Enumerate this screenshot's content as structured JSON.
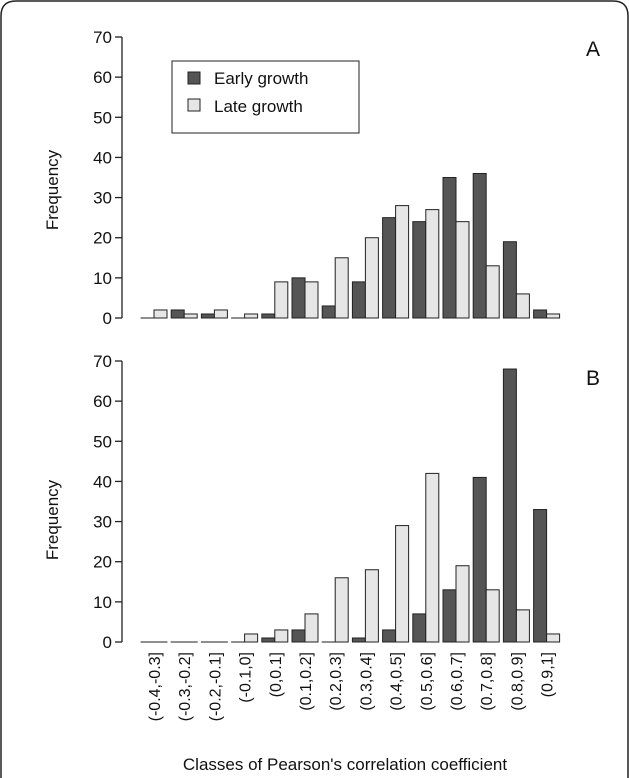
{
  "chart_data": [
    {
      "type": "bar",
      "panel_label": "A",
      "ylabel": "Frequency",
      "ylim": [
        0,
        70
      ],
      "yticks": [
        0,
        10,
        20,
        30,
        40,
        50,
        60,
        70
      ],
      "legend": {
        "placement": "top-left"
      },
      "categories": [
        "(-0.4,-0.3]",
        "(-0.3,-0.2]",
        "(-0.2,-0.1]",
        "(-0.1,0]",
        "(0,0.1]",
        "(0.1,0.2]",
        "(0.2,0.3]",
        "(0.3,0.4]",
        "(0.4,0.5]",
        "(0.5,0.6]",
        "(0.6,0.7]",
        "(0.7,0.8]",
        "(0.8,0.9]",
        "(0.9,1]"
      ],
      "series": [
        {
          "name": "Early growth",
          "color": "#555555",
          "values": [
            0,
            2,
            1,
            0,
            1,
            10,
            3,
            9,
            25,
            24,
            35,
            36,
            19,
            2
          ]
        },
        {
          "name": "Late growth",
          "color": "#e6e6e6",
          "values": [
            2,
            1,
            2,
            1,
            9,
            9,
            15,
            20,
            28,
            27,
            24,
            13,
            6,
            1
          ]
        }
      ]
    },
    {
      "type": "bar",
      "panel_label": "B",
      "ylabel": "Frequency",
      "ylim": [
        0,
        70
      ],
      "yticks": [
        0,
        10,
        20,
        30,
        40,
        50,
        60,
        70
      ],
      "categories": [
        "(-0.4,-0.3]",
        "(-0.3,-0.2]",
        "(-0.2,-0.1]",
        "(-0.1,0]",
        "(0,0.1]",
        "(0.1,0.2]",
        "(0.2,0.3]",
        "(0.3,0.4]",
        "(0.4,0.5]",
        "(0.5,0.6]",
        "(0.6,0.7]",
        "(0.7,0.8]",
        "(0.8,0.9]",
        "(0.9,1]"
      ],
      "xlabel": "Classes of Pearson's correlation coefficient",
      "series": [
        {
          "name": "Early growth",
          "color": "#555555",
          "values": [
            0,
            0,
            0,
            0,
            1,
            3,
            0,
            1,
            3,
            7,
            13,
            41,
            68,
            33
          ]
        },
        {
          "name": "Late growth",
          "color": "#e6e6e6",
          "values": [
            0,
            0,
            0,
            2,
            3,
            7,
            16,
            18,
            29,
            42,
            19,
            13,
            8,
            2
          ]
        }
      ]
    }
  ]
}
